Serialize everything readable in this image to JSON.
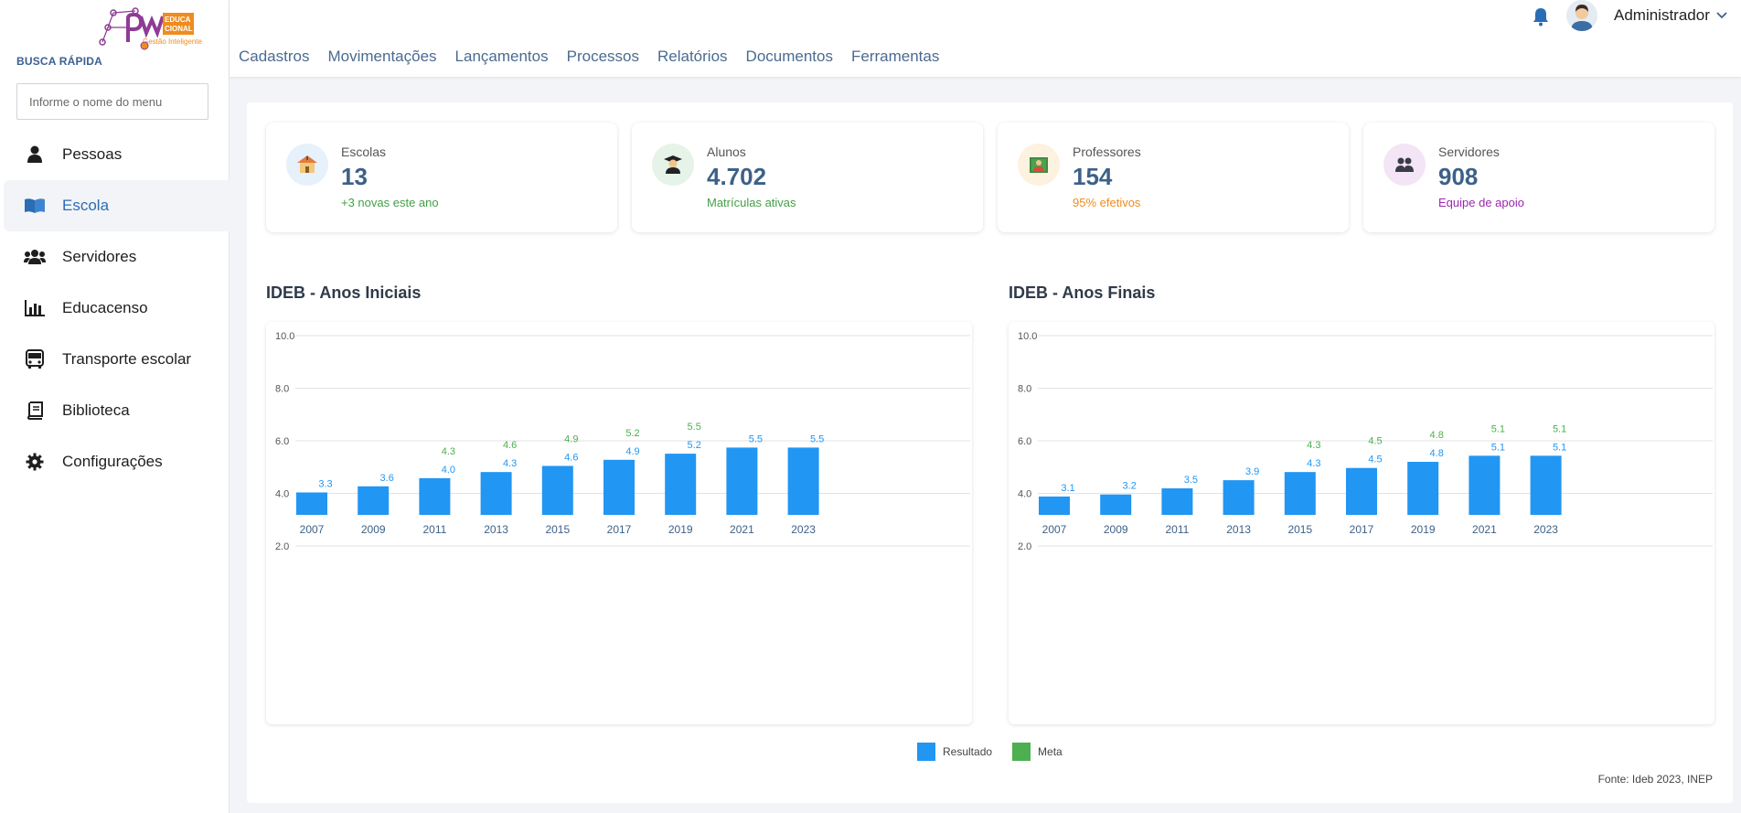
{
  "sidebar": {
    "busca_label": "BUSCA RÁPIDA",
    "busca_placeholder": "Informe o nome do menu",
    "items": [
      {
        "label": "Pessoas",
        "icon": "person-icon",
        "active": false
      },
      {
        "label": "Escola",
        "icon": "book-icon",
        "active": true
      },
      {
        "label": "Servidores",
        "icon": "users-icon",
        "active": false
      },
      {
        "label": "Educacenso",
        "icon": "bar-chart-icon",
        "active": false
      },
      {
        "label": "Transporte escolar",
        "icon": "bus-icon",
        "active": false
      },
      {
        "label": "Biblioteca",
        "icon": "library-book-icon",
        "active": false
      },
      {
        "label": "Configurações",
        "icon": "gear-icon",
        "active": false
      }
    ]
  },
  "header": {
    "nav": [
      "Cadastros",
      "Movimentações",
      "Lançamentos",
      "Processos",
      "Relatórios",
      "Documentos",
      "Ferramentas"
    ],
    "user_name": "Administrador"
  },
  "cards": [
    {
      "label": "Escolas",
      "value": "13",
      "sub": "+3 novas este ano",
      "sub_color": "#43a047",
      "icon": "school-icon",
      "icon_bg": "#e6f1fc"
    },
    {
      "label": "Alunos",
      "value": "4.702",
      "sub": "Matrículas ativas",
      "sub_color": "#43a047",
      "icon": "student-icon",
      "icon_bg": "#e6f3e8"
    },
    {
      "label": "Professores",
      "value": "154",
      "sub": "95% efetivos",
      "sub_color": "#ef8c1d",
      "icon": "teacher-icon",
      "icon_bg": "#fdf2df"
    },
    {
      "label": "Servidores",
      "value": "908",
      "sub": "Equipe de apoio",
      "sub_color": "#9c27b0",
      "icon": "staff-icon",
      "icon_bg": "#f3e5f5"
    }
  ],
  "colors": {
    "resultado": "#2196f3",
    "meta": "#4caf50"
  },
  "chart_data": [
    {
      "type": "bar",
      "title": "IDEB - Anos Iniciais",
      "categories": [
        "2007",
        "2009",
        "2011",
        "2013",
        "2015",
        "2017",
        "2019",
        "2021",
        "2023"
      ],
      "series": [
        {
          "name": "Resultado",
          "values": [
            3.3,
            3.6,
            4.0,
            4.3,
            4.6,
            4.9,
            5.2,
            5.5,
            5.5
          ]
        },
        {
          "name": "Meta",
          "values": [
            null,
            null,
            4.3,
            4.6,
            4.9,
            5.2,
            5.5,
            null,
            null
          ]
        }
      ],
      "yticks": [
        "10.0",
        "8.0",
        "6.0",
        "4.0",
        "2.0"
      ],
      "grid": true
    },
    {
      "type": "bar",
      "title": "IDEB - Anos Finais",
      "categories": [
        "2007",
        "2009",
        "2011",
        "2013",
        "2015",
        "2017",
        "2019",
        "2021",
        "2023"
      ],
      "series": [
        {
          "name": "Resultado",
          "values": [
            3.1,
            3.2,
            3.5,
            3.9,
            4.3,
            4.5,
            4.8,
            5.1,
            5.1
          ]
        },
        {
          "name": "Meta",
          "values": [
            null,
            null,
            null,
            null,
            4.3,
            4.5,
            4.8,
            5.1,
            5.1
          ]
        }
      ],
      "yticks": [
        "10.0",
        "8.0",
        "6.0",
        "4.0",
        "2.0"
      ],
      "grid": true
    }
  ],
  "legend": {
    "resultado": "Resultado",
    "meta": "Meta",
    "placement": "bottom-center"
  },
  "fonte": "Fonte: Ideb 2023, INEP"
}
